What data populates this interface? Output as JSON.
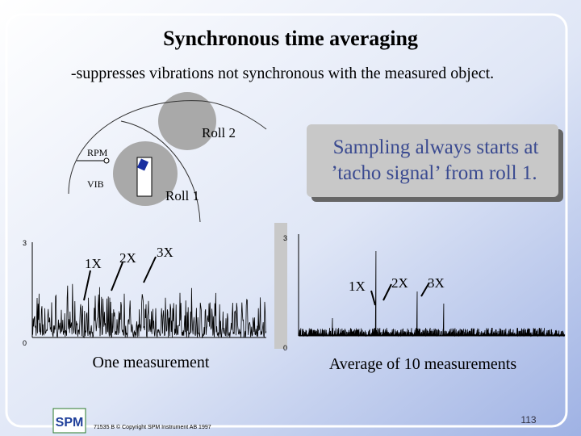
{
  "slide": {
    "title": "Synchronous time averaging",
    "subtitle": "-suppresses vibrations not synchronous with the measured object.",
    "diagram": {
      "roll2": "Roll 2",
      "roll1": "Roll 1",
      "rpm": "RPM",
      "vib": "VIB"
    },
    "callout": {
      "line1": "Sampling always starts at",
      "line2": "’tacho signal’ from roll 1."
    },
    "left_plot": {
      "ytick_top": "3",
      "ytick_bottom": "0",
      "peaks": [
        "1X",
        "2X",
        "3X"
      ],
      "caption": "One measurement"
    },
    "right_plot": {
      "ytick_top": "3",
      "ytick_bottom": "0",
      "peaks": [
        "1X",
        "2X",
        "3X"
      ],
      "caption": "Average of 10 measurements"
    },
    "footer": {
      "logo": "SPM",
      "copyright": "71535 B © Copyright SPM Instrument AB 1997",
      "page": "113"
    }
  }
}
